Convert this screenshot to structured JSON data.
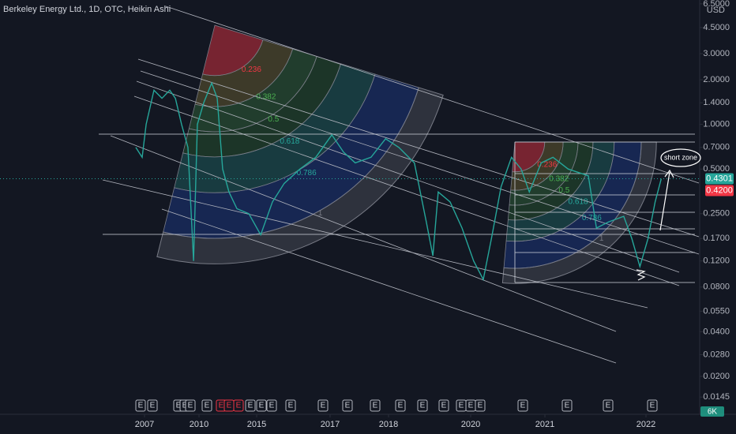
{
  "chart_data": {
    "type": "line",
    "title": "Berkeley Energy Ltd., 1D, OTC, Heikin Ashi",
    "currency": "USD",
    "log_scale": true,
    "grid": false,
    "color": "#26a69a",
    "x": [
      2006.52,
      2006.87,
      2007.09,
      2007.52,
      2007.96,
      2008.39,
      2008.7,
      2009.04,
      2009.39,
      2009.7,
      2009.91,
      2010.41,
      2011.1,
      2011.58,
      2012.05,
      2012.6,
      2013.29,
      2014.32,
      2015.11,
      2015.43,
      2015.75,
      2016.18,
      2016.61,
      2017.03,
      2017.23,
      2017.43,
      2017.7,
      2017.95,
      2018.25,
      2018.63,
      2018.92,
      2019.08,
      2019.21,
      2019.5,
      2019.79,
      2020.04,
      2020.17,
      2020.28,
      2020.41,
      2020.55,
      2020.68,
      2020.79,
      2020.95,
      2021.08,
      2021.23,
      2021.43,
      2021.51,
      2021.63,
      2021.78,
      2021.86,
      2021.94,
      2022.02,
      2022.09,
      2022.15
    ],
    "values": [
      0.7,
      0.6,
      1.0,
      1.7,
      1.5,
      1.7,
      1.5,
      1.0,
      0.7,
      0.12,
      1.0,
      1.4,
      1.9,
      1.5,
      0.5,
      0.35,
      0.27,
      0.25,
      0.18,
      0.3,
      0.4,
      0.5,
      0.6,
      0.85,
      0.65,
      0.55,
      0.6,
      0.8,
      0.7,
      0.55,
      0.22,
      0.13,
      0.35,
      0.3,
      0.2,
      0.12,
      0.09,
      0.17,
      0.38,
      0.6,
      0.5,
      0.35,
      0.55,
      0.6,
      0.5,
      0.45,
      0.2,
      0.22,
      0.24,
      0.17,
      0.11,
      0.17,
      0.3,
      0.43
    ],
    "xlim": [
      1999.04,
      2022.52
    ],
    "xticks": [
      2007,
      2010,
      2015,
      2017,
      2018,
      2020,
      2021,
      2022
    ],
    "ylim": [
      0.0111,
      6.9
    ],
    "yticks": [
      {
        "value": 6.5,
        "label": "6.5000"
      },
      {
        "value": 4.5,
        "label": "4.5000"
      },
      {
        "value": 3.0,
        "label": "3.0000"
      },
      {
        "value": 2.0,
        "label": "2.0000"
      },
      {
        "value": 1.4,
        "label": "1.4000"
      },
      {
        "value": 1.0,
        "label": "1.0000"
      },
      {
        "value": 0.7,
        "label": "0.7000"
      },
      {
        "value": 0.5,
        "label": "0.5000"
      },
      {
        "value": 0.25,
        "label": "0.2500"
      },
      {
        "value": 0.17,
        "label": "0.1700"
      },
      {
        "value": 0.12,
        "label": "0.1200"
      },
      {
        "value": 0.08,
        "label": "0.0800"
      },
      {
        "value": 0.055,
        "label": "0.0550"
      },
      {
        "value": 0.04,
        "label": "0.0400"
      },
      {
        "value": 0.028,
        "label": "0.0280"
      },
      {
        "value": 0.02,
        "label": "0.0200"
      },
      {
        "value": 0.0145,
        "label": "0.0145"
      }
    ],
    "price_labels": [
      {
        "value": 0.4301,
        "label": "0.4301",
        "color": "#26a69a"
      },
      {
        "value": 0.42,
        "label": "0.4200",
        "color": "#f23645"
      }
    ],
    "fib_levels": [
      0.236,
      0.382,
      0.5,
      0.618,
      0.786,
      1
    ],
    "annotation": "short zone",
    "earnings_label": "E",
    "volume_label": "6K"
  }
}
